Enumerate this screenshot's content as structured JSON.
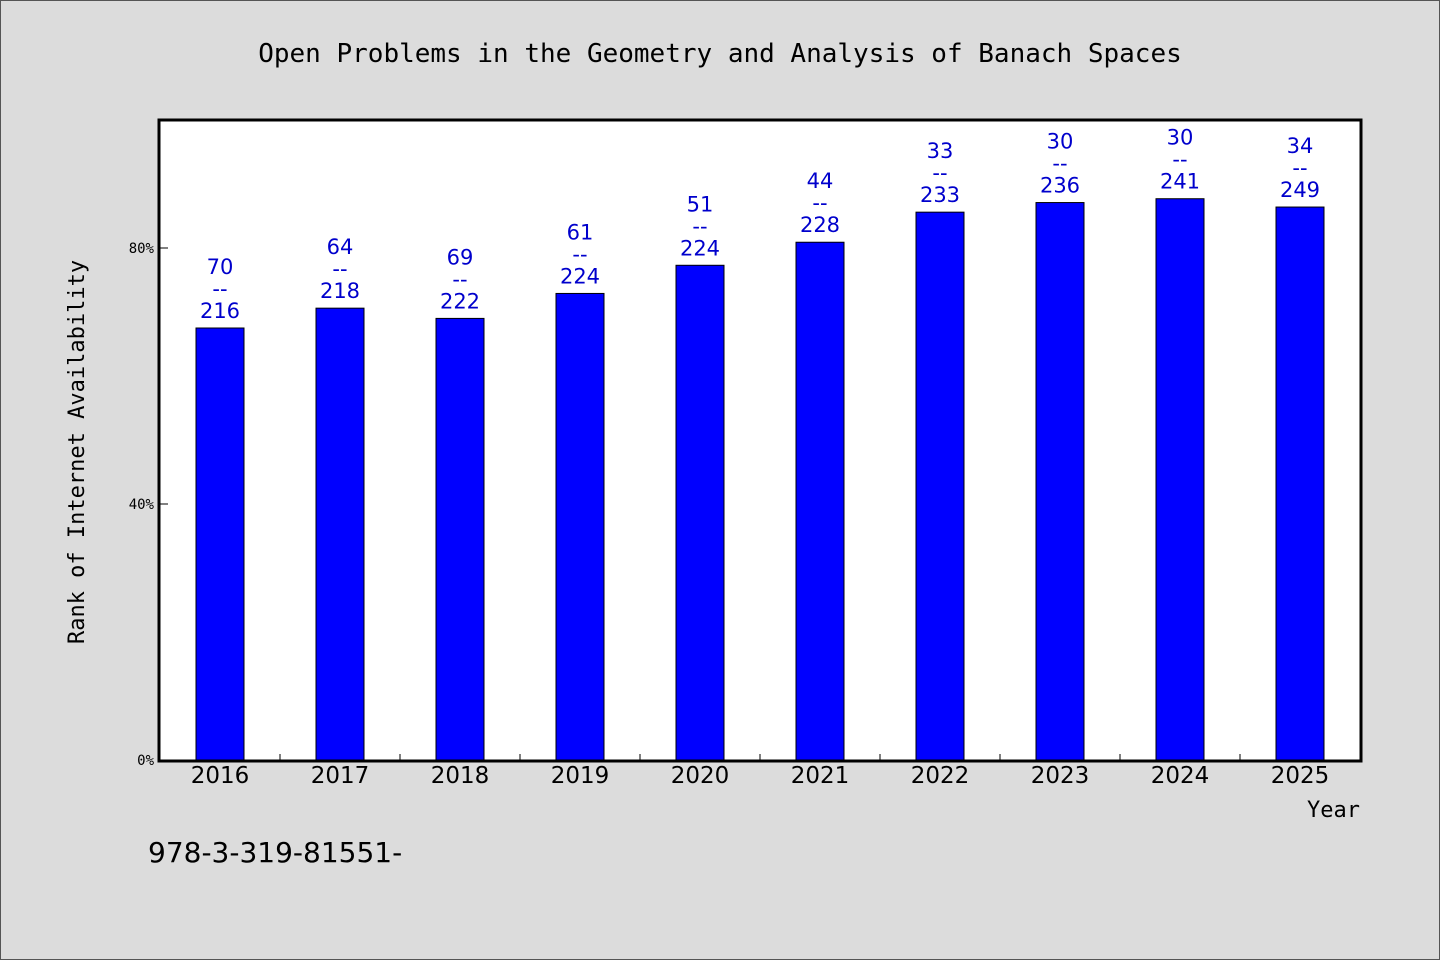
{
  "chart_data": {
    "type": "bar",
    "title": "Open Problems in the Geometry and Analysis of Banach Spaces",
    "xlabel": "Year",
    "ylabel": "Rank of Internet Availability",
    "categories": [
      "2016",
      "2017",
      "2018",
      "2019",
      "2020",
      "2021",
      "2022",
      "2023",
      "2024",
      "2025"
    ],
    "values": [
      67.5,
      70.6,
      69.0,
      72.9,
      77.3,
      80.9,
      85.6,
      87.1,
      87.7,
      86.4
    ],
    "data_labels": [
      [
        "70",
        "--",
        "216"
      ],
      [
        "64",
        "--",
        "218"
      ],
      [
        "69",
        "--",
        "222"
      ],
      [
        "61",
        "--",
        "224"
      ],
      [
        "51",
        "--",
        "224"
      ],
      [
        "44",
        "--",
        "228"
      ],
      [
        "33",
        "--",
        "233"
      ],
      [
        "30",
        "--",
        "236"
      ],
      [
        "30",
        "--",
        "241"
      ],
      [
        "34",
        "--",
        "249"
      ]
    ],
    "ylim": [
      0,
      100
    ],
    "yticks": [
      0,
      40,
      80
    ],
    "ytick_labels": [
      "0%",
      "40%",
      "80%"
    ],
    "grid": false,
    "bar_color": "#0000ff",
    "label_color": "#0000cc"
  },
  "footer": {
    "text": "978-3-319-81551-"
  }
}
